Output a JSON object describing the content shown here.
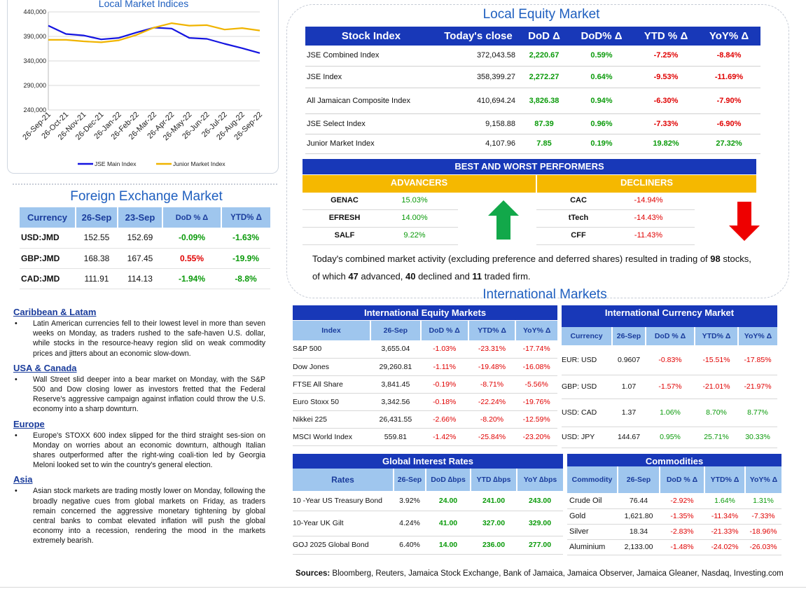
{
  "chart_data": {
    "type": "line",
    "title": "Local Market Indices",
    "x": [
      "26-Sep-21",
      "26-Oct-21",
      "26-Nov-21",
      "26-Dec-21",
      "26-Jan-22",
      "26-Feb-22",
      "26-Mar-22",
      "26-Apr-22",
      "26-May-22",
      "26-Jun-22",
      "26-Jul-22",
      "26-Aug-22",
      "26-Sep-22"
    ],
    "ylim": [
      240000,
      440000
    ],
    "yticks": [
      "440,000",
      "390,000",
      "340,000",
      "290,000",
      "240,000"
    ],
    "series": [
      {
        "name": "JSE Main Index",
        "color": "#1414e0",
        "values": [
          412000,
          395000,
          392000,
          384000,
          387000,
          398000,
          408000,
          406000,
          387000,
          385000,
          375000,
          366000,
          356000
        ]
      },
      {
        "name": "Junior Market Index",
        "color": "#f0b400",
        "values": [
          383000,
          383000,
          380000,
          378000,
          382000,
          393000,
          408000,
          417000,
          412000,
          413000,
          404000,
          407000,
          402000
        ]
      }
    ]
  },
  "fx": {
    "title": "Foreign Exchange Market",
    "headers": [
      "Currency",
      "26-Sep",
      "23-Sep",
      "DoD % Δ",
      "YTD% Δ"
    ],
    "rows": [
      {
        "cur": "USD:JMD",
        "a": "152.55",
        "b": "152.69",
        "dod": "-0.09%",
        "ytd": "-1.63%",
        "dodcls": "pos",
        "ytdcls": "pos"
      },
      {
        "cur": "GBP:JMD",
        "a": "168.38",
        "b": "167.45",
        "dod": "0.55%",
        "ytd": "-19.9%",
        "dodcls": "neg",
        "ytdcls": "pos"
      },
      {
        "cur": "CAD:JMD",
        "a": "111.91",
        "b": "114.13",
        "dod": "-1.94%",
        "ytd": "-8.8%",
        "dodcls": "pos",
        "ytdcls": "pos"
      }
    ]
  },
  "news": [
    {
      "heading": "Caribbean & Latam",
      "text": "Latin American currencies fell to their lowest level in more than seven weeks on Monday, as traders rushed to the safe-haven U.S. dollar, while stocks in the resource-heavy region slid on weak commodity prices and jitters about an economic slow-down."
    },
    {
      "heading": "USA & Canada",
      "text": "Wall Street slid deeper into a bear market on Monday, with the S&P 500 and Dow closing lower as investors fretted that the Federal Reserve's aggressive campaign against inflation could throw the U.S. economy into a sharp downturn."
    },
    {
      "heading": "Europe",
      "text": "Europe's STOXX 600 index slipped for the third straight ses-sion on Monday on worries about an economic downturn, although Italian shares outperformed after the right-wing coali-tion led by Georgia Meloni looked set to win the country's general election."
    },
    {
      "heading": "Asia",
      "text": "Asian stock markets are trading mostly lower on Monday, following the broadly negative cues from global markets on Friday, as traders remain concerned the aggressive monetary tightening by global central banks to combat elevated inflation will push the global economy into a recession, rendering the mood in the markets extremely bearish."
    }
  ],
  "local_equity": {
    "title": "Local Equity Market",
    "headers": [
      "Stock Index",
      "Today's close",
      "DoD Δ",
      "DoD% Δ",
      "YTD % Δ",
      "YoY% Δ"
    ],
    "rows": [
      {
        "name": "JSE Combined Index",
        "close": "372,043.58",
        "dod": "2,220.67",
        "dodp": "0.59%",
        "ytd": "-7.25%",
        "yoy": "-8.84%",
        "ytdcls": "neg",
        "yoycls": "neg"
      },
      {
        "name": "JSE Index",
        "close": "358,399.27",
        "dod": "2,272.27",
        "dodp": "0.64%",
        "ytd": "-9.53%",
        "yoy": "-11.69%",
        "ytdcls": "neg",
        "yoycls": "neg"
      },
      {
        "name": "All Jamaican Composite Index",
        "close": "410,694.24",
        "dod": "3,826.38",
        "dodp": "0.94%",
        "ytd": "-6.30%",
        "yoy": "-7.90%",
        "ytdcls": "neg",
        "yoycls": "neg"
      },
      {
        "name": "JSE Select Index",
        "close": "9,158.88",
        "dod": "87.39",
        "dodp": "0.96%",
        "ytd": "-7.33%",
        "yoy": "-6.90%",
        "ytdcls": "neg",
        "yoycls": "neg"
      },
      {
        "name": "Junior Market Index",
        "close": "4,107.96",
        "dod": "7.85",
        "dodp": "0.19%",
        "ytd": "19.82%",
        "yoy": "27.32%",
        "ytdcls": "pos",
        "yoycls": "pos"
      }
    ],
    "best_worst_title": "BEST AND WORST PERFORMERS",
    "advancers_label": "ADVANCERS",
    "decliners_label": "DECLINERS",
    "advancers": [
      {
        "sym": "GENAC",
        "pct": "15.03%"
      },
      {
        "sym": "EFRESH",
        "pct": "14.00%"
      },
      {
        "sym": "SALF",
        "pct": "9.22%"
      }
    ],
    "decliners": [
      {
        "sym": "CAC",
        "pct": "-14.94%"
      },
      {
        "sym": "tTech",
        "pct": "-14.43%"
      },
      {
        "sym": "CFF",
        "pct": "-11.43%"
      }
    ],
    "summary_pre": "Today's combined market activity (excluding preference and deferred shares) resulted in trading of ",
    "traded": "98",
    "summary_mid1": " stocks, of which ",
    "advanced": "47",
    "summary_mid2": " advanced, ",
    "declined": "40",
    "summary_mid3": " declined and ",
    "firm": "11",
    "summary_end": " traded firm."
  },
  "intl": {
    "title": "International Markets",
    "equity": {
      "title": "International Equity Markets",
      "headers": [
        "Index",
        "26-Sep",
        "DoD % Δ",
        "YTD% Δ",
        "YoY% Δ"
      ],
      "rows": [
        {
          "name": "S&P 500",
          "v": "3,655.04",
          "dod": "-1.03%",
          "ytd": "-23.31%",
          "yoy": "-17.74%"
        },
        {
          "name": "Dow Jones",
          "v": "29,260.81",
          "dod": "-1.11%",
          "ytd": "-19.48%",
          "yoy": "-16.08%"
        },
        {
          "name": "FTSE All Share",
          "v": "3,841.45",
          "dod": "-0.19%",
          "ytd": "-8.71%",
          "yoy": "-5.56%"
        },
        {
          "name": "Euro Stoxx 50",
          "v": "3,342.56",
          "dod": "-0.18%",
          "ytd": "-22.24%",
          "yoy": "-19.76%"
        },
        {
          "name": "Nikkei 225",
          "v": "26,431.55",
          "dod": "-2.66%",
          "ytd": "-8.20%",
          "yoy": "-12.59%"
        },
        {
          "name": "MSCI World Index",
          "v": "559.81",
          "dod": "-1.42%",
          "ytd": "-25.84%",
          "yoy": "-23.20%"
        }
      ]
    },
    "currency": {
      "title": "International Currency Market",
      "headers": [
        "Currency",
        "26-Sep",
        "DoD % Δ",
        "YTD% Δ",
        "YoY% Δ"
      ],
      "rows": [
        {
          "name": "EUR: USD",
          "v": "0.9607",
          "dod": "-0.83%",
          "ytd": "-15.51%",
          "yoy": "-17.85%",
          "c": "neg"
        },
        {
          "name": "GBP: USD",
          "v": "1.07",
          "dod": "-1.57%",
          "ytd": "-21.01%",
          "yoy": "-21.97%",
          "c": "neg"
        },
        {
          "name": "USD: CAD",
          "v": "1.37",
          "dod": "1.06%",
          "ytd": "8.70%",
          "yoy": "8.77%",
          "c": "pos"
        },
        {
          "name": "USD: JPY",
          "v": "144.67",
          "dod": "0.95%",
          "ytd": "25.71%",
          "yoy": "30.33%",
          "c": "pos"
        }
      ]
    },
    "rates": {
      "title": "Global Interest Rates",
      "headers": [
        "Rates",
        "26-Sep",
        "DoD ∆bps",
        "YTD ∆bps",
        "YoY ∆bps"
      ],
      "rows": [
        {
          "name": "10 -Year US Treasury Bond",
          "v": "3.92%",
          "dod": "24.00",
          "ytd": "241.00",
          "yoy": "243.00"
        },
        {
          "name": "10-Year UK Gilt",
          "v": "4.24%",
          "dod": "41.00",
          "ytd": "327.00",
          "yoy": "329.00"
        },
        {
          "name": "GOJ 2025 Global Bond",
          "v": "6.40%",
          "dod": "14.00",
          "ytd": "236.00",
          "yoy": "277.00"
        }
      ]
    },
    "commodities": {
      "title": "Commodities",
      "headers": [
        "Commodity",
        "26-Sep",
        "DoD % Δ",
        "YTD% Δ",
        "YoY% Δ"
      ],
      "rows": [
        {
          "name": "Crude Oil",
          "v": "76.44",
          "dod": "-2.92%",
          "ytd": "1.64%",
          "yoy": "1.31%",
          "dc": "neg",
          "yc": "pos",
          "oc": "pos"
        },
        {
          "name": "Gold",
          "v": "1,621.80",
          "dod": "-1.35%",
          "ytd": "-11.34%",
          "yoy": "-7.33%",
          "dc": "neg",
          "yc": "neg",
          "oc": "neg"
        },
        {
          "name": "Silver",
          "v": "18.34",
          "dod": "-2.83%",
          "ytd": "-21.33%",
          "yoy": "-18.96%",
          "dc": "neg",
          "yc": "neg",
          "oc": "neg"
        },
        {
          "name": "Aluminium",
          "v": "2,133.00",
          "dod": "-1.48%",
          "ytd": "-24.02%",
          "yoy": "-26.03%",
          "dc": "neg",
          "yc": "neg",
          "oc": "neg"
        }
      ]
    }
  },
  "sources_label": "Sources:",
  "sources_text": " Bloomberg, Reuters, Jamaica Stock Exchange, Bank of Jamaica, Jamaica Observer, Jamaica Gleaner, Nasdaq, Investing.com"
}
